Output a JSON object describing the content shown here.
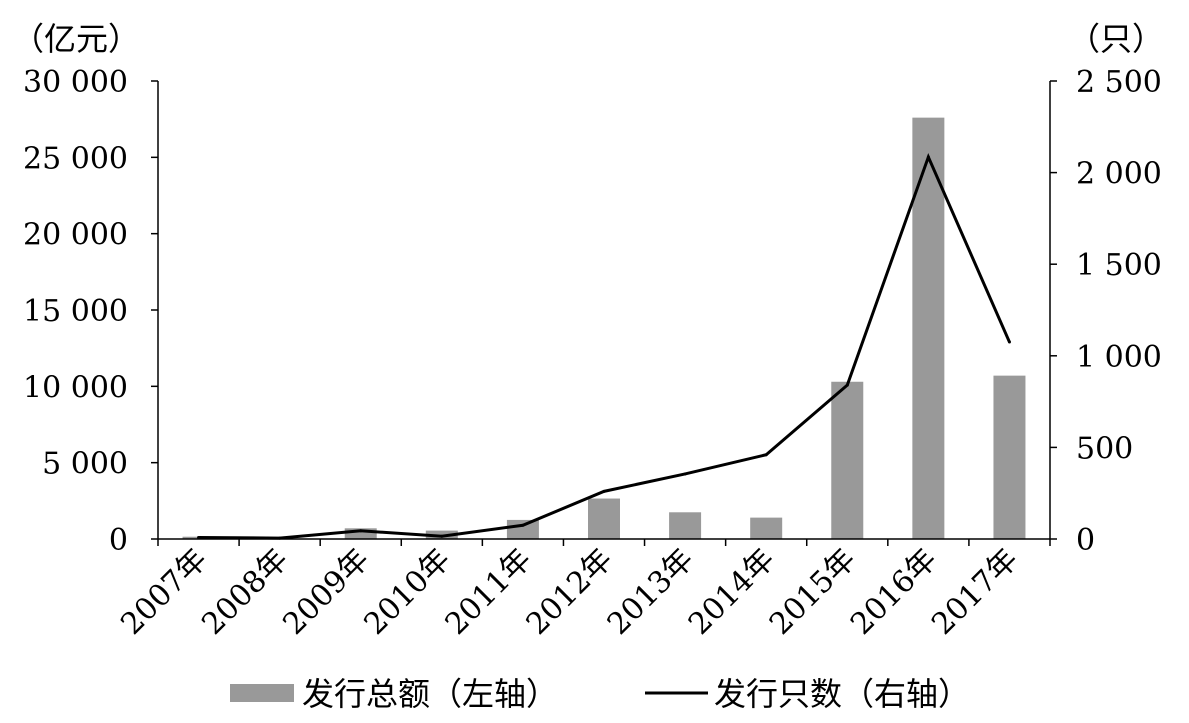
{
  "chart_data": {
    "type": "bar+line",
    "categories": [
      "2007年",
      "2008年",
      "2009年",
      "2010年",
      "2011年",
      "2012年",
      "2013年",
      "2014年",
      "2015年",
      "2016年",
      "2017年"
    ],
    "left_axis": {
      "unit": "（亿元）",
      "ylim": [
        0,
        30000
      ],
      "ticks": [
        0,
        5000,
        10000,
        15000,
        20000,
        25000,
        30000
      ],
      "tick_labels": [
        "0",
        "5 000",
        "10 000",
        "15 000",
        "20 000",
        "25 000",
        "30 000"
      ]
    },
    "right_axis": {
      "unit": "（只）",
      "ylim": [
        0,
        2500
      ],
      "ticks": [
        0,
        500,
        1000,
        1500,
        2000,
        2500
      ],
      "tick_labels": [
        "0",
        "500",
        "1 000",
        "1 500",
        "2 000",
        "2 500"
      ]
    },
    "series": [
      {
        "name": "发行总额（左轴）",
        "type": "bar",
        "axis": "left",
        "color": "#999999",
        "values": [
          150,
          0,
          700,
          550,
          1250,
          2650,
          1750,
          1400,
          10300,
          27600,
          10700
        ]
      },
      {
        "name": "发行只数（右轴）",
        "type": "line",
        "axis": "right",
        "color": "#000000",
        "values": [
          8,
          5,
          45,
          15,
          75,
          260,
          355,
          460,
          840,
          2085,
          1075
        ]
      }
    ],
    "legend_position": "bottom-center",
    "grid": false
  }
}
